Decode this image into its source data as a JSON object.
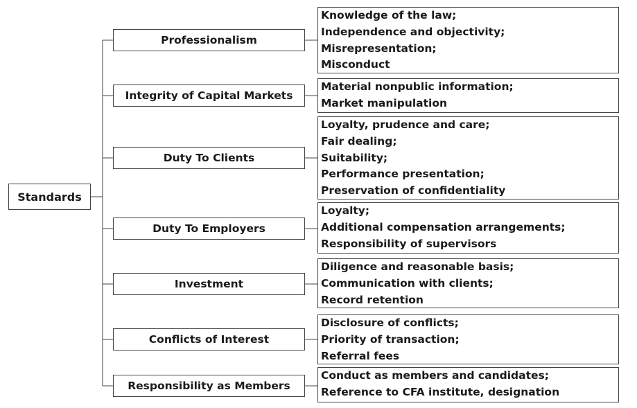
{
  "root": {
    "label": "Standards"
  },
  "categories": [
    {
      "label": "Professionalism",
      "details": [
        "Knowledge of the law;",
        "Independence and objectivity;",
        "Misrepresentation;",
        "Misconduct"
      ]
    },
    {
      "label": "Integrity of Capital Markets",
      "details": [
        "Material nonpublic information;",
        "Market manipulation"
      ]
    },
    {
      "label": "Duty To Clients",
      "details": [
        "Loyalty, prudence and care;",
        "Fair dealing;",
        "Suitability;",
        "Performance presentation;",
        "Preservation of confidentiality"
      ]
    },
    {
      "label": "Duty To Employers",
      "details": [
        "Loyalty;",
        "Additional compensation arrangements;",
        "Responsibility of supervisors"
      ]
    },
    {
      "label": "Investment",
      "details": [
        "Diligence and reasonable basis;",
        "Communication with clients;",
        "Record retention"
      ]
    },
    {
      "label": "Conflicts of Interest",
      "details": [
        "Disclosure of conflicts;",
        "Priority of transaction;",
        "Referral fees"
      ]
    },
    {
      "label": "Responsibility as Members",
      "details": [
        "Conduct as members and candidates;",
        "Reference to CFA institute, designation"
      ]
    }
  ]
}
